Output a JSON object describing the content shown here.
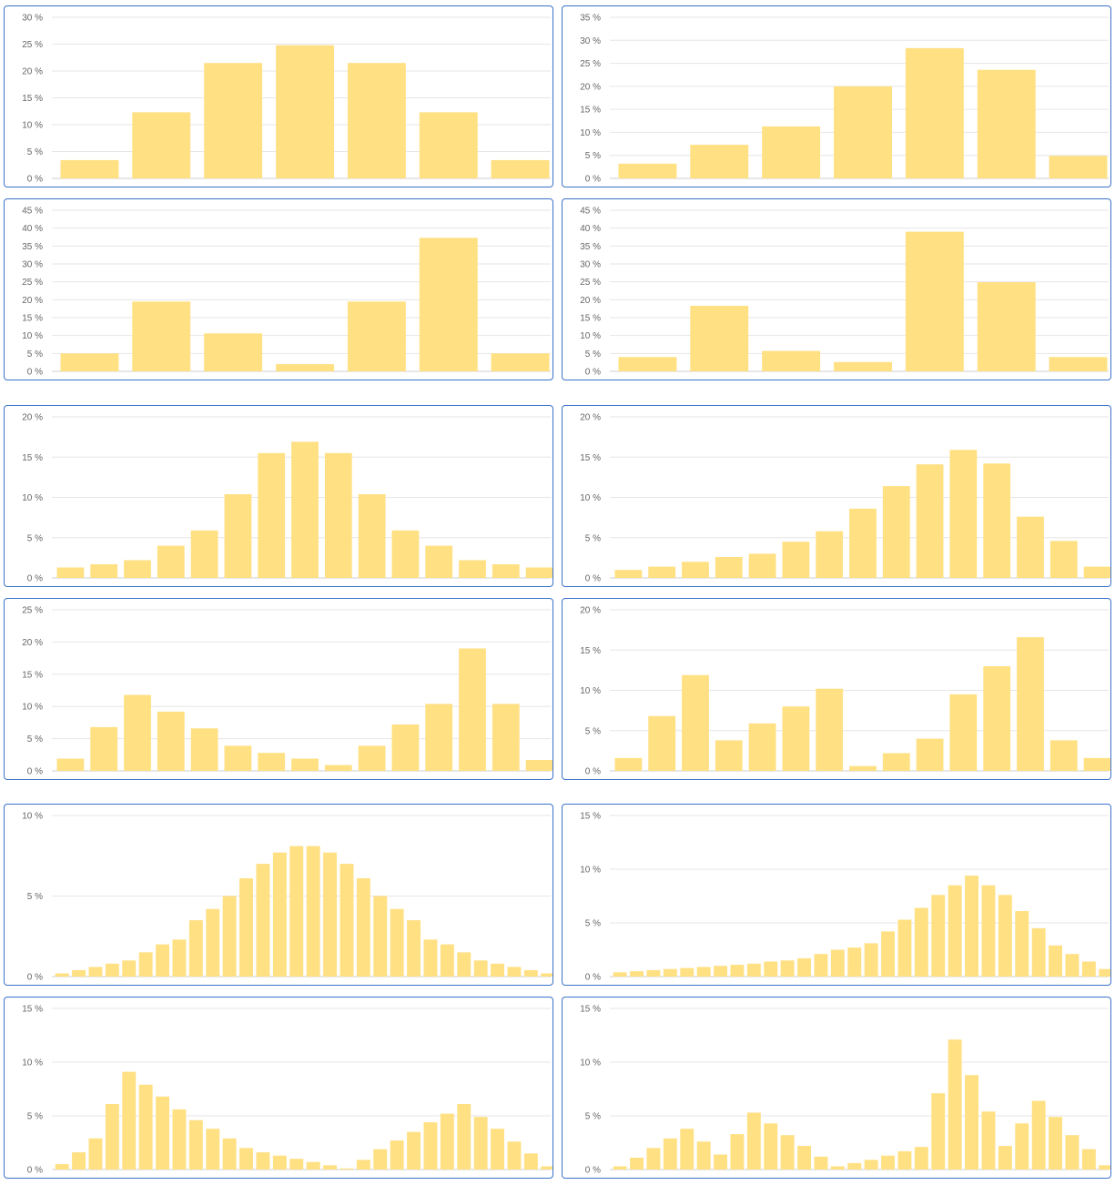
{
  "colors": {
    "bar": "#ffe083",
    "grid": "#e6e6e6",
    "border": "#3b73c9",
    "text": "#666666"
  },
  "chart_data": [
    {
      "type": "bar",
      "ylim": [
        0,
        30
      ],
      "yticks": [
        "0 %",
        "5 %",
        "10 %",
        "15 %",
        "20 %",
        "25 %",
        "30 %"
      ],
      "values": [
        3.4,
        12.3,
        21.5,
        24.8,
        21.5,
        12.3,
        3.4
      ]
    },
    {
      "type": "bar",
      "ylim": [
        0,
        35
      ],
      "yticks": [
        "0 %",
        "5 %",
        "10 %",
        "15 %",
        "20 %",
        "25 %",
        "30 %",
        "35 %"
      ],
      "values": [
        3.2,
        7.3,
        11.3,
        20.0,
        28.3,
        23.6,
        4.9
      ]
    },
    {
      "type": "bar",
      "ylim": [
        0,
        45
      ],
      "yticks": [
        "0 %",
        "5 %",
        "10 %",
        "15 %",
        "20 %",
        "25 %",
        "30 %",
        "35 %",
        "40 %",
        "45 %"
      ],
      "values": [
        5.0,
        19.5,
        10.6,
        2.0,
        19.5,
        37.3,
        5.0
      ]
    },
    {
      "type": "bar",
      "ylim": [
        0,
        45
      ],
      "yticks": [
        "0 %",
        "5 %",
        "10 %",
        "15 %",
        "20 %",
        "25 %",
        "30 %",
        "35 %",
        "40 %",
        "45 %"
      ],
      "values": [
        4.0,
        18.3,
        5.7,
        2.6,
        39.0,
        24.9,
        4.0
      ]
    },
    {
      "type": "bar",
      "ylim": [
        0,
        20
      ],
      "yticks": [
        "0 %",
        "5 %",
        "10 %",
        "15 %",
        "20 %"
      ],
      "values": [
        1.3,
        1.7,
        2.2,
        4.0,
        5.9,
        10.4,
        15.5,
        16.9,
        15.5,
        10.4,
        5.9,
        4.0,
        2.2,
        1.7,
        1.3
      ]
    },
    {
      "type": "bar",
      "ylim": [
        0,
        20
      ],
      "yticks": [
        "0 %",
        "5 %",
        "10 %",
        "15 %",
        "20 %"
      ],
      "values": [
        1.0,
        1.4,
        2.0,
        2.6,
        3.0,
        4.5,
        5.8,
        8.6,
        11.4,
        14.1,
        15.9,
        14.2,
        7.6,
        4.6,
        1.4
      ]
    },
    {
      "type": "bar",
      "ylim": [
        0,
        25
      ],
      "yticks": [
        "0 %",
        "5 %",
        "10 %",
        "15 %",
        "20 %",
        "25 %"
      ],
      "values": [
        1.9,
        6.8,
        11.8,
        9.2,
        6.6,
        3.9,
        2.8,
        1.9,
        0.9,
        3.9,
        7.2,
        10.4,
        19.0,
        10.4,
        1.7
      ]
    },
    {
      "type": "bar",
      "ylim": [
        0,
        20
      ],
      "yticks": [
        "0 %",
        "5 %",
        "10 %",
        "15 %",
        "20 %"
      ],
      "values": [
        1.6,
        6.8,
        11.9,
        3.8,
        5.9,
        8.0,
        10.2,
        0.6,
        2.2,
        4.0,
        9.5,
        13.0,
        16.6,
        3.8,
        1.6
      ]
    },
    {
      "type": "bar",
      "ylim": [
        0,
        10
      ],
      "yticks": [
        "0 %",
        "5 %",
        "10 %"
      ],
      "values": [
        0.2,
        0.4,
        0.6,
        0.8,
        1.0,
        1.5,
        2.0,
        2.3,
        3.5,
        4.2,
        5.0,
        6.1,
        7.0,
        7.7,
        8.1,
        8.1,
        7.7,
        7.0,
        6.1,
        5.0,
        4.2,
        3.5,
        2.3,
        2.0,
        1.5,
        1.0,
        0.8,
        0.6,
        0.4,
        0.2
      ]
    },
    {
      "type": "bar",
      "ylim": [
        0,
        15
      ],
      "yticks": [
        "0 %",
        "5 %",
        "10 %",
        "15 %"
      ],
      "values": [
        0.4,
        0.5,
        0.6,
        0.7,
        0.8,
        0.9,
        1.0,
        1.1,
        1.2,
        1.4,
        1.5,
        1.7,
        2.1,
        2.5,
        2.7,
        3.1,
        4.2,
        5.3,
        6.4,
        7.6,
        8.5,
        9.4,
        8.5,
        7.6,
        6.1,
        4.5,
        2.9,
        2.1,
        1.4,
        0.7
      ]
    },
    {
      "type": "bar",
      "ylim": [
        0,
        15
      ],
      "yticks": [
        "0 %",
        "5 %",
        "10 %",
        "15 %"
      ],
      "values": [
        0.5,
        1.6,
        2.9,
        6.1,
        9.1,
        7.9,
        6.8,
        5.6,
        4.6,
        3.8,
        2.9,
        2.0,
        1.6,
        1.3,
        1.0,
        0.7,
        0.4,
        0.1,
        0.9,
        1.9,
        2.7,
        3.5,
        4.4,
        5.2,
        6.1,
        4.9,
        3.8,
        2.6,
        1.5,
        0.3
      ]
    },
    {
      "type": "bar",
      "ylim": [
        0,
        15
      ],
      "yticks": [
        "0 %",
        "5 %",
        "10 %",
        "15 %"
      ],
      "values": [
        0.3,
        1.1,
        2.0,
        2.9,
        3.8,
        2.6,
        1.4,
        3.3,
        5.3,
        4.3,
        3.2,
        2.2,
        1.2,
        0.3,
        0.6,
        0.9,
        1.3,
        1.7,
        2.1,
        7.1,
        12.1,
        8.8,
        5.4,
        2.2,
        4.3,
        6.4,
        4.9,
        3.2,
        1.9,
        0.4
      ]
    }
  ]
}
